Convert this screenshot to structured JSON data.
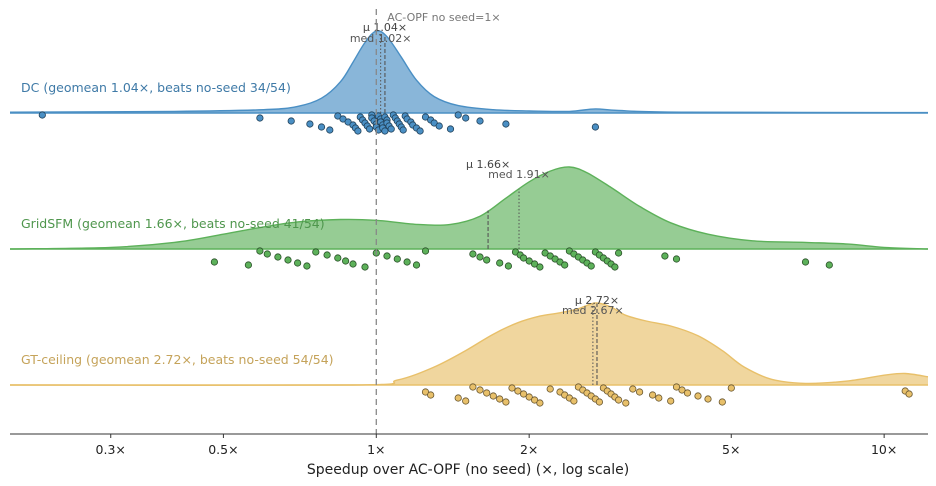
{
  "chart_data": {
    "type": "ridgeline-density",
    "title": "",
    "xlabel": "Speedup over AC-OPF (no seed) (×, log scale)",
    "ylabel": "",
    "x_scale": "log",
    "xlim": [
      0.19,
      12.2
    ],
    "xticks": [
      {
        "value": 0.3,
        "label": "0.3×"
      },
      {
        "value": 0.5,
        "label": "0.5×"
      },
      {
        "value": 1,
        "label": "1×"
      },
      {
        "value": 2,
        "label": "2×"
      },
      {
        "value": 5,
        "label": "5×"
      },
      {
        "value": 10,
        "label": "10×"
      }
    ],
    "grid": false,
    "reference_line": {
      "value": 1,
      "label": "AC-OPF no seed=1×"
    },
    "series": [
      {
        "name": "DC",
        "label": "DC (geomean 1.04×, beats no-seed 34/54)",
        "color": "#4a8fc4",
        "geomean": 1.04,
        "median": 1.02,
        "mean_label": "μ 1.04×",
        "median_label": "med 1.02×",
        "density": [
          [
            0.19,
            0.01
          ],
          [
            0.4,
            0.02
          ],
          [
            0.6,
            0.04
          ],
          [
            0.7,
            0.08
          ],
          [
            0.78,
            0.18
          ],
          [
            0.85,
            0.38
          ],
          [
            0.9,
            0.62
          ],
          [
            0.95,
            0.86
          ],
          [
            1.0,
            1.0
          ],
          [
            1.05,
            0.93
          ],
          [
            1.12,
            0.68
          ],
          [
            1.2,
            0.4
          ],
          [
            1.3,
            0.2
          ],
          [
            1.45,
            0.09
          ],
          [
            1.7,
            0.04
          ],
          [
            2.0,
            0.025
          ],
          [
            2.4,
            0.02
          ],
          [
            2.7,
            0.05
          ],
          [
            3.0,
            0.03
          ],
          [
            4.0,
            0.01
          ],
          [
            12.2,
            0.005
          ]
        ],
        "points": [
          0.22,
          0.59,
          0.68,
          0.74,
          0.78,
          0.81,
          0.84,
          0.86,
          0.88,
          0.9,
          0.91,
          0.92,
          0.93,
          0.94,
          0.95,
          0.96,
          0.97,
          0.98,
          0.98,
          0.99,
          1.0,
          1.0,
          1.01,
          1.01,
          1.02,
          1.02,
          1.03,
          1.03,
          1.04,
          1.04,
          1.05,
          1.05,
          1.06,
          1.07,
          1.08,
          1.09,
          1.1,
          1.11,
          1.12,
          1.13,
          1.14,
          1.15,
          1.17,
          1.18,
          1.2,
          1.22,
          1.25,
          1.28,
          1.3,
          1.33,
          1.4,
          1.45,
          1.5,
          1.6,
          1.8,
          2.7
        ]
      },
      {
        "name": "GridSFM",
        "label": "GridSFM (geomean 1.66×, beats no-seed 41/54)",
        "color": "#5db15a",
        "geomean": 1.66,
        "median": 1.91,
        "mean_label": "μ 1.66×",
        "median_label": "med 1.91×",
        "density": [
          [
            0.19,
            0.0
          ],
          [
            0.3,
            0.02
          ],
          [
            0.4,
            0.08
          ],
          [
            0.5,
            0.18
          ],
          [
            0.6,
            0.27
          ],
          [
            0.7,
            0.33
          ],
          [
            0.85,
            0.36
          ],
          [
            1.0,
            0.35
          ],
          [
            1.2,
            0.3
          ],
          [
            1.4,
            0.3
          ],
          [
            1.6,
            0.4
          ],
          [
            1.8,
            0.62
          ],
          [
            2.0,
            0.82
          ],
          [
            2.2,
            0.95
          ],
          [
            2.4,
            1.0
          ],
          [
            2.6,
            0.93
          ],
          [
            2.9,
            0.75
          ],
          [
            3.3,
            0.52
          ],
          [
            3.8,
            0.32
          ],
          [
            4.5,
            0.18
          ],
          [
            5.5,
            0.1
          ],
          [
            7.0,
            0.08
          ],
          [
            8.5,
            0.06
          ],
          [
            10.0,
            0.02
          ],
          [
            12.2,
            0.0
          ]
        ],
        "points": [
          0.48,
          0.56,
          0.59,
          0.61,
          0.64,
          0.67,
          0.7,
          0.73,
          0.76,
          0.8,
          0.84,
          0.87,
          0.9,
          0.95,
          1.0,
          1.05,
          1.1,
          1.15,
          1.2,
          1.25,
          1.55,
          1.6,
          1.65,
          1.75,
          1.82,
          1.88,
          1.92,
          1.95,
          2.0,
          2.05,
          2.1,
          2.15,
          2.2,
          2.25,
          2.3,
          2.35,
          2.4,
          2.45,
          2.5,
          2.55,
          2.6,
          2.65,
          2.7,
          2.75,
          2.8,
          2.85,
          2.9,
          2.95,
          3.0,
          3.7,
          3.9,
          7.0,
          7.8
        ]
      },
      {
        "name": "GT-ceiling",
        "label": "GT-ceiling (geomean 2.72×, beats no-seed 54/54)",
        "color": "#e8c06a",
        "geomean": 2.72,
        "median": 2.67,
        "mean_label": "μ 2.72×",
        "median_label": "med 2.67×",
        "density": [
          [
            0.19,
            0.0
          ],
          [
            0.9,
            0.0
          ],
          [
            1.1,
            0.06
          ],
          [
            1.3,
            0.22
          ],
          [
            1.5,
            0.42
          ],
          [
            1.7,
            0.62
          ],
          [
            1.9,
            0.76
          ],
          [
            2.1,
            0.84
          ],
          [
            2.3,
            0.88
          ],
          [
            2.5,
            0.93
          ],
          [
            2.7,
            1.0
          ],
          [
            2.9,
            0.95
          ],
          [
            3.1,
            0.85
          ],
          [
            3.4,
            0.78
          ],
          [
            3.8,
            0.72
          ],
          [
            4.3,
            0.6
          ],
          [
            4.8,
            0.42
          ],
          [
            5.3,
            0.22
          ],
          [
            6.0,
            0.07
          ],
          [
            7.0,
            0.02
          ],
          [
            8.5,
            0.05
          ],
          [
            10.0,
            0.12
          ],
          [
            11.0,
            0.14
          ],
          [
            12.2,
            0.1
          ]
        ],
        "points": [
          1.25,
          1.28,
          1.45,
          1.5,
          1.55,
          1.6,
          1.65,
          1.7,
          1.75,
          1.8,
          1.85,
          1.9,
          1.95,
          2.0,
          2.05,
          2.1,
          2.2,
          2.3,
          2.35,
          2.4,
          2.45,
          2.5,
          2.55,
          2.6,
          2.65,
          2.7,
          2.75,
          2.8,
          2.85,
          2.9,
          2.95,
          3.0,
          3.1,
          3.2,
          3.3,
          3.5,
          3.6,
          3.8,
          3.9,
          4.0,
          4.1,
          4.3,
          4.5,
          4.8,
          5.0,
          11.0,
          11.2
        ]
      }
    ]
  }
}
